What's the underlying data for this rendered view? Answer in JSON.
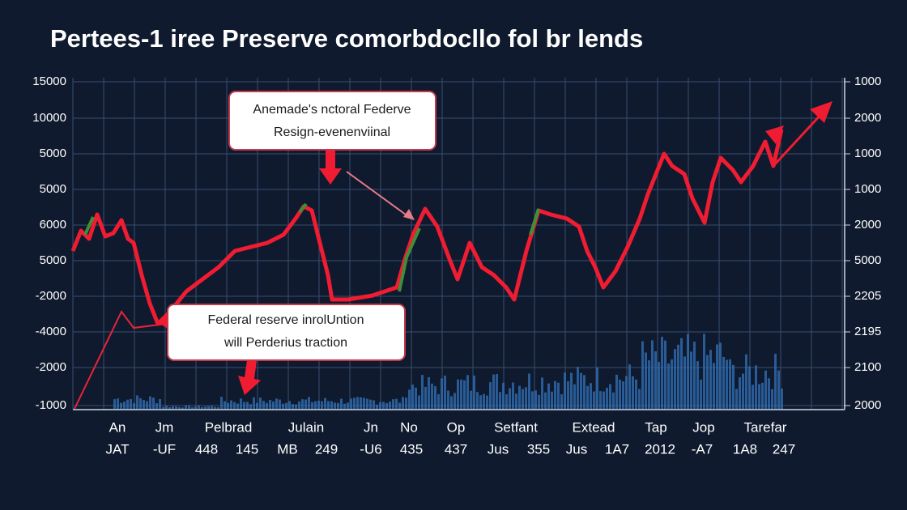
{
  "title": "Pertees-1 iree Preserve comorbdocllo fol br lends",
  "left_axis": [
    "15000",
    "10000",
    "5000",
    "5000",
    "6000",
    "5000",
    "-2000",
    "-4000",
    "-2000",
    "-1000"
  ],
  "right_axis": [
    "1000",
    "2000",
    "1000",
    "1000",
    "2000",
    "5000",
    "2205",
    "2195",
    "2100",
    "2000"
  ],
  "x_labels": {
    "row1": [
      "An",
      "Jm",
      "Pelbrad",
      "Julain",
      "Jn",
      "No",
      "Op",
      "Setfant",
      "Extead",
      "Tap",
      "Jop",
      "Tarefar"
    ],
    "row2": [
      "JAT",
      "-UF",
      "448",
      "145",
      "MB",
      "249",
      "-U6",
      "435",
      "437",
      "Jus",
      "355",
      "Jus",
      "1A7",
      "2012",
      "-A7",
      "1A8",
      "247"
    ]
  },
  "annotations": [
    {
      "lines": [
        "Anemade's nctoral Federve",
        "Resign-evenenviinal"
      ]
    },
    {
      "lines": [
        "Federal reserve inrolUntion",
        "will Perderius traction"
      ]
    }
  ]
}
